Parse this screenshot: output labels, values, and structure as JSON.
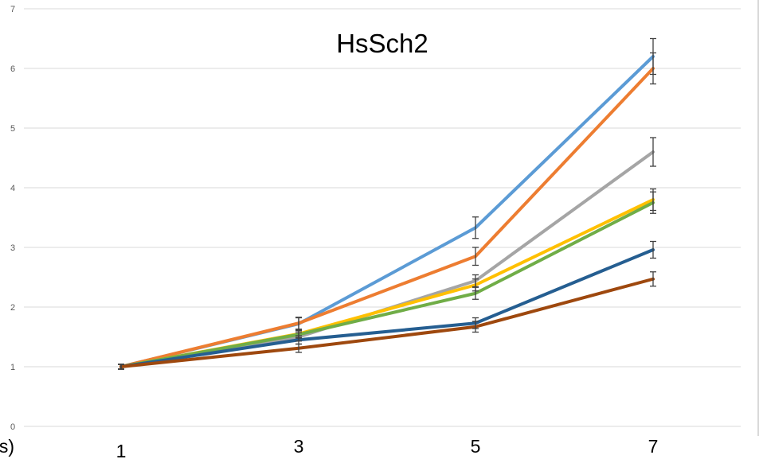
{
  "chart_data": {
    "type": "line",
    "title": "HsSch2",
    "xlabel_fragment": "ys)",
    "categories": [
      "1",
      "3",
      "5",
      "7"
    ],
    "ylim": [
      0,
      7
    ],
    "yticks": [
      "0",
      "1",
      "2",
      "3",
      "4",
      "5",
      "6",
      "7"
    ],
    "grid": true,
    "series": [
      {
        "color": "#5b9bd5",
        "values": [
          1.0,
          1.72,
          3.33,
          6.2
        ],
        "errors": [
          0.04,
          0.1,
          0.18,
          0.3
        ]
      },
      {
        "color": "#ed7d31",
        "values": [
          1.0,
          1.73,
          2.85,
          6.0
        ],
        "errors": [
          0.04,
          0.1,
          0.15,
          0.26
        ]
      },
      {
        "color": "#a5a5a5",
        "values": [
          1.0,
          1.5,
          2.44,
          4.6
        ],
        "errors": [
          0.04,
          0.07,
          0.1,
          0.24
        ]
      },
      {
        "color": "#ffc000",
        "values": [
          1.0,
          1.55,
          2.37,
          3.8
        ],
        "errors": [
          0.04,
          0.06,
          0.1,
          0.18
        ]
      },
      {
        "color": "#70ad47",
        "values": [
          1.0,
          1.54,
          2.23,
          3.75
        ],
        "errors": [
          0.04,
          0.06,
          0.1,
          0.18
        ]
      },
      {
        "color": "#255e91",
        "values": [
          1.0,
          1.45,
          1.73,
          2.96
        ],
        "errors": [
          0.04,
          0.07,
          0.09,
          0.14
        ]
      },
      {
        "color": "#9e480e",
        "values": [
          1.0,
          1.31,
          1.67,
          2.47
        ],
        "errors": [
          0.04,
          0.07,
          0.09,
          0.12
        ]
      }
    ]
  }
}
